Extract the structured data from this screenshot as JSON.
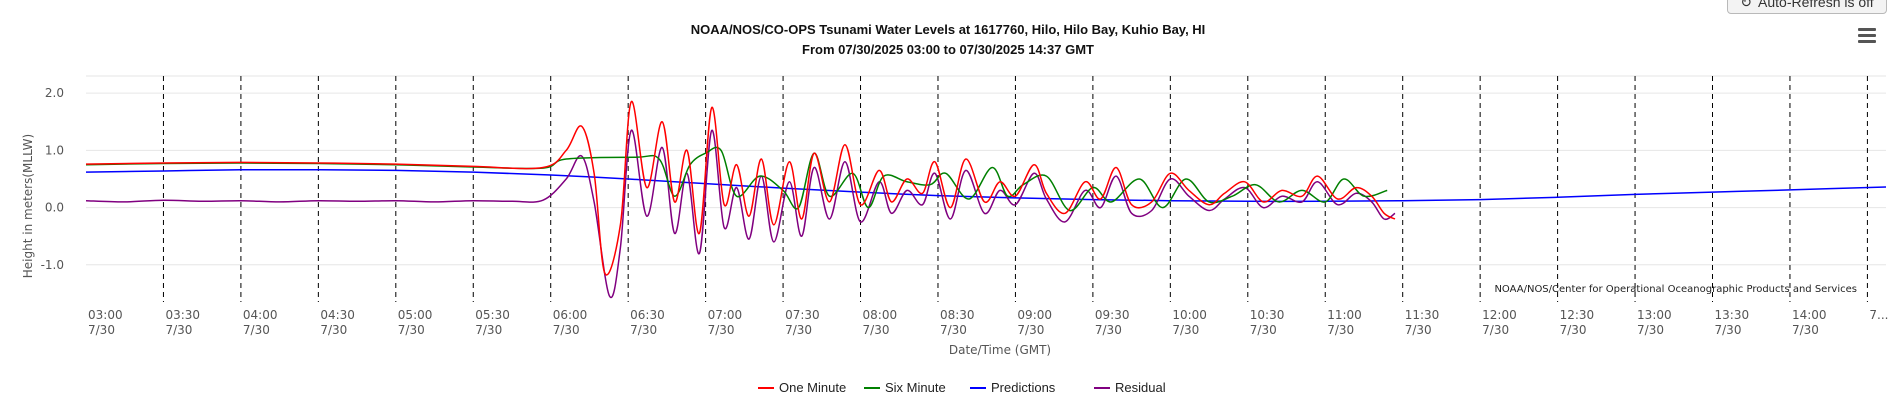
{
  "toolbar": {
    "refresh_label": "Auto-Refresh is off",
    "refresh_icon": "refresh-icon",
    "menu_icon": "hamburger-menu-icon"
  },
  "chart_data": {
    "type": "line",
    "title": "NOAA/NOS/CO-OPS Tsunami Water Levels at 1617760, Hilo, Hilo Bay, Kuhio Bay, HI",
    "subtitle": "From 07/30/2025 03:00 to 07/30/2025 14:37 GMT",
    "xlabel": "Date/Time (GMT)",
    "ylabel": "Height in meters(MLLW)",
    "credit": "NOAA/NOS/Center for Operational Oceanographic Products and Services",
    "x_unit": "hours GMT on 07/30/2025",
    "xlim": [
      3.0,
      14.62
    ],
    "ylim": [
      -1.65,
      2.3
    ],
    "yticks": [
      2.0,
      1.0,
      0.0,
      -1.0
    ],
    "ytick_labels": [
      "2.0",
      "1.0",
      "0.0",
      "-1.0"
    ],
    "xticks": [
      3.0,
      3.5,
      4.0,
      4.5,
      5.0,
      5.5,
      6.0,
      6.5,
      7.0,
      7.5,
      8.0,
      8.5,
      9.0,
      9.5,
      10.0,
      10.5,
      11.0,
      11.5,
      12.0,
      12.5,
      13.0,
      13.5,
      14.0,
      14.5
    ],
    "xtick_labels": [
      "03:00",
      "03:30",
      "04:00",
      "04:30",
      "05:00",
      "05:30",
      "06:00",
      "06:30",
      "07:00",
      "07:30",
      "08:00",
      "08:30",
      "09:00",
      "09:30",
      "10:00",
      "10:30",
      "11:00",
      "11:30",
      "12:00",
      "12:30",
      "13:00",
      "13:30",
      "14:00",
      "7..."
    ],
    "xtick_sublabels": [
      "7/30",
      "7/30",
      "7/30",
      "7/30",
      "7/30",
      "7/30",
      "7/30",
      "7/30",
      "7/30",
      "7/30",
      "7/30",
      "7/30",
      "7/30",
      "7/30",
      "7/30",
      "7/30",
      "7/30",
      "7/30",
      "7/30",
      "7/30",
      "7/30",
      "7/30",
      "7/30",
      ""
    ],
    "grid": {
      "y": true,
      "x": "dashed"
    },
    "legend_position": "bottom-center",
    "series": [
      {
        "name": "One Minute",
        "color": "#ff0000",
        "x": [
          3.0,
          3.5,
          4.0,
          4.5,
          5.0,
          5.5,
          5.95,
          6.1,
          6.2,
          6.28,
          6.35,
          6.45,
          6.52,
          6.62,
          6.72,
          6.8,
          6.88,
          6.96,
          7.04,
          7.12,
          7.2,
          7.28,
          7.36,
          7.44,
          7.54,
          7.62,
          7.7,
          7.8,
          7.9,
          8.0,
          8.12,
          8.2,
          8.3,
          8.4,
          8.48,
          8.58,
          8.68,
          8.8,
          8.9,
          9.0,
          9.12,
          9.2,
          9.32,
          9.45,
          9.55,
          9.65,
          9.75,
          9.88,
          10.0,
          10.12,
          10.25,
          10.35,
          10.48,
          10.6,
          10.72,
          10.85,
          10.95,
          11.08,
          11.2,
          11.3,
          11.38,
          11.45
        ],
        "values": [
          0.76,
          0.78,
          0.79,
          0.78,
          0.76,
          0.72,
          0.7,
          1.0,
          1.42,
          0.6,
          -1.15,
          -0.3,
          1.85,
          0.35,
          1.5,
          0.1,
          1.0,
          -0.45,
          1.75,
          0.05,
          0.75,
          -0.15,
          0.85,
          -0.3,
          0.8,
          -0.2,
          0.95,
          0.1,
          1.1,
          0.05,
          0.65,
          0.1,
          0.5,
          0.25,
          0.8,
          0.0,
          0.85,
          0.1,
          0.45,
          0.2,
          0.75,
          0.25,
          -0.1,
          0.45,
          0.15,
          0.7,
          0.05,
          0.1,
          0.6,
          0.3,
          0.05,
          0.25,
          0.45,
          0.1,
          0.3,
          0.2,
          0.55,
          0.15,
          0.35,
          0.2,
          -0.1,
          -0.2
        ]
      },
      {
        "name": "Six Minute",
        "color": "#008000",
        "x": [
          3.0,
          3.5,
          4.0,
          4.5,
          5.0,
          5.5,
          5.95,
          6.1,
          6.55,
          6.7,
          6.8,
          6.9,
          7.0,
          7.1,
          7.2,
          7.35,
          7.5,
          7.6,
          7.7,
          7.8,
          7.95,
          8.05,
          8.15,
          8.3,
          8.45,
          8.55,
          8.7,
          8.85,
          8.95,
          9.05,
          9.2,
          9.35,
          9.5,
          9.62,
          9.8,
          9.95,
          10.1,
          10.25,
          10.4,
          10.55,
          10.7,
          10.85,
          11.0,
          11.12,
          11.25,
          11.4
        ],
        "values": [
          0.75,
          0.77,
          0.78,
          0.77,
          0.75,
          0.71,
          0.69,
          0.85,
          0.88,
          0.85,
          0.2,
          0.75,
          0.95,
          1.0,
          0.2,
          0.55,
          0.3,
          0.0,
          0.95,
          0.2,
          0.6,
          0.0,
          0.55,
          0.45,
          0.4,
          0.6,
          0.15,
          0.7,
          0.2,
          0.4,
          0.55,
          -0.05,
          0.35,
          0.1,
          0.5,
          0.0,
          0.5,
          0.1,
          0.2,
          0.4,
          0.1,
          0.3,
          0.1,
          0.5,
          0.2,
          0.3
        ]
      },
      {
        "name": "Predictions",
        "color": "#0000ff",
        "x": [
          3.0,
          3.5,
          4.0,
          4.5,
          5.0,
          5.5,
          6.0,
          6.5,
          7.0,
          7.5,
          8.0,
          8.5,
          9.0,
          9.5,
          10.0,
          10.5,
          11.0,
          11.5,
          12.0,
          12.5,
          13.0,
          13.5,
          14.0,
          14.62
        ],
        "values": [
          0.62,
          0.64,
          0.66,
          0.66,
          0.65,
          0.62,
          0.57,
          0.5,
          0.42,
          0.34,
          0.27,
          0.21,
          0.17,
          0.14,
          0.12,
          0.11,
          0.11,
          0.12,
          0.14,
          0.18,
          0.23,
          0.27,
          0.31,
          0.36
        ]
      },
      {
        "name": "Residual",
        "color": "#800080",
        "x": [
          3.0,
          3.25,
          3.5,
          3.75,
          4.0,
          4.25,
          4.5,
          4.75,
          5.0,
          5.25,
          5.5,
          5.75,
          5.95,
          6.1,
          6.2,
          6.28,
          6.38,
          6.45,
          6.52,
          6.62,
          6.72,
          6.8,
          6.88,
          6.96,
          7.04,
          7.12,
          7.2,
          7.28,
          7.36,
          7.44,
          7.54,
          7.62,
          7.7,
          7.8,
          7.9,
          8.0,
          8.12,
          8.2,
          8.3,
          8.4,
          8.48,
          8.58,
          8.68,
          8.8,
          8.9,
          9.0,
          9.12,
          9.2,
          9.32,
          9.45,
          9.55,
          9.65,
          9.75,
          9.88,
          10.0,
          10.12,
          10.25,
          10.35,
          10.48,
          10.6,
          10.72,
          10.85,
          10.95,
          11.08,
          11.2,
          11.3,
          11.38,
          11.45
        ],
        "values": [
          0.12,
          0.1,
          0.13,
          0.11,
          0.12,
          0.1,
          0.12,
          0.11,
          0.12,
          0.1,
          0.12,
          0.11,
          0.13,
          0.5,
          0.9,
          0.1,
          -1.55,
          -0.7,
          1.35,
          -0.15,
          1.05,
          -0.45,
          0.6,
          -0.8,
          1.35,
          -0.35,
          0.35,
          -0.55,
          0.55,
          -0.6,
          0.45,
          -0.5,
          0.7,
          -0.2,
          0.8,
          -0.25,
          0.45,
          -0.1,
          0.3,
          0.05,
          0.6,
          -0.2,
          0.65,
          -0.1,
          0.3,
          0.05,
          0.6,
          0.15,
          -0.25,
          0.3,
          0.0,
          0.55,
          -0.1,
          -0.05,
          0.5,
          0.2,
          -0.05,
          0.15,
          0.35,
          0.0,
          0.2,
          0.1,
          0.45,
          0.05,
          0.25,
          0.1,
          -0.2,
          -0.1
        ]
      }
    ]
  }
}
